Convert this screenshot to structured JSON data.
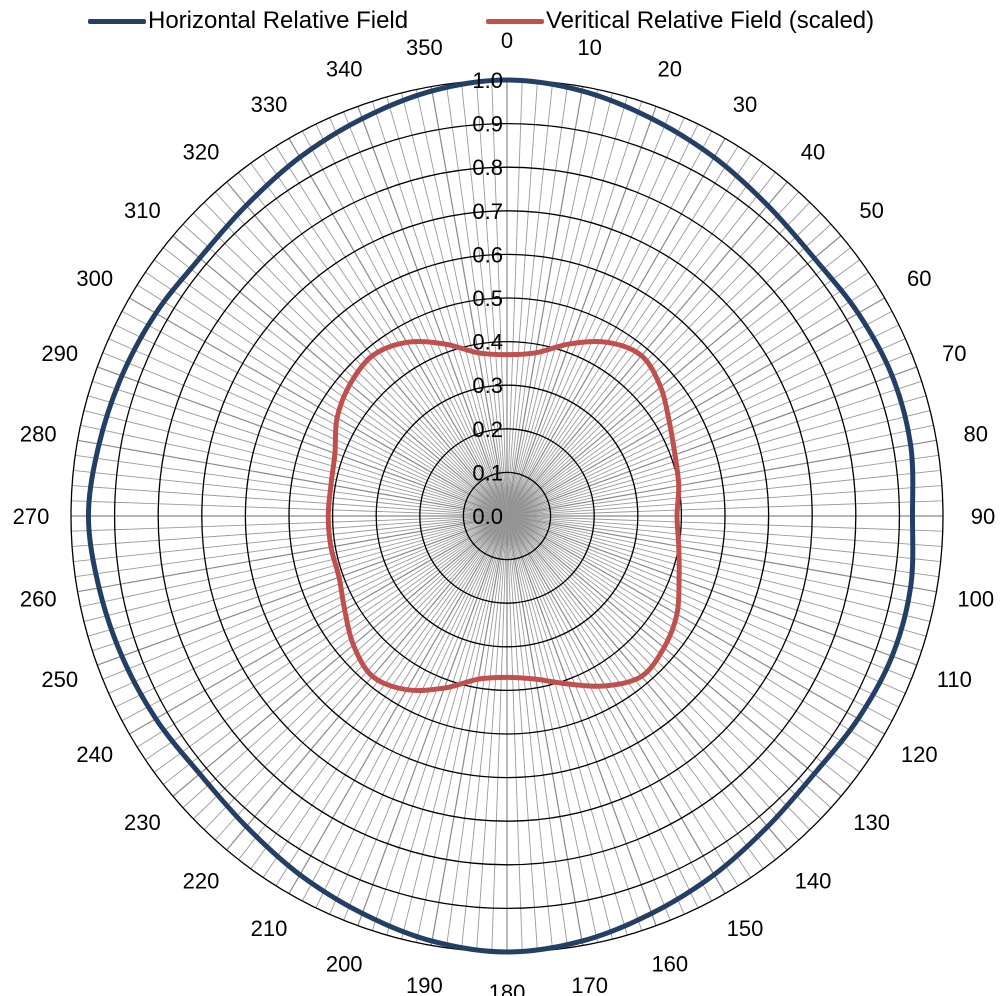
{
  "chart_data": {
    "type": "polar-line",
    "angle_unit": "degrees",
    "angle_ticks": [
      0,
      10,
      20,
      30,
      40,
      50,
      60,
      70,
      80,
      90,
      100,
      110,
      120,
      130,
      140,
      150,
      160,
      170,
      180,
      190,
      200,
      210,
      220,
      230,
      240,
      250,
      260,
      270,
      280,
      290,
      300,
      310,
      320,
      330,
      340,
      350
    ],
    "angle_labels": [
      "0",
      "10",
      "20",
      "30",
      "40",
      "50",
      "60",
      "70",
      "80",
      "90",
      "100",
      "110",
      "120",
      "130",
      "140",
      "150",
      "160",
      "170",
      "180",
      "190",
      "200",
      "210",
      "220",
      "230",
      "240",
      "250",
      "260",
      "270",
      "280",
      "290",
      "300",
      "310",
      "320",
      "330",
      "340",
      "350"
    ],
    "minor_spoke_step_deg": 2,
    "r_range": [
      0,
      1.0
    ],
    "r_ticks": [
      0.0,
      0.1,
      0.2,
      0.3,
      0.4,
      0.5,
      0.6,
      0.7,
      0.8,
      0.9,
      1.0
    ],
    "r_tick_labels": [
      "0.0",
      "0.1",
      "0.2",
      "0.3",
      "0.4",
      "0.5",
      "0.6",
      "0.7",
      "0.8",
      "0.9",
      "1.0"
    ],
    "grid": true,
    "legend_position": "top",
    "series": [
      {
        "name": "Horizontal Relative Field",
        "color": "#243f66",
        "angles": [
          0,
          10,
          20,
          30,
          40,
          50,
          60,
          70,
          80,
          90,
          100,
          110,
          120,
          130,
          140,
          150,
          160,
          170,
          180,
          190,
          200,
          210,
          220,
          230,
          240,
          250,
          260,
          270,
          280,
          290,
          300,
          310,
          320,
          330,
          340,
          350
        ],
        "values": [
          1.0,
          0.99,
          0.97,
          0.95,
          0.93,
          0.92,
          0.93,
          0.94,
          0.94,
          0.93,
          0.94,
          0.94,
          0.93,
          0.92,
          0.93,
          0.95,
          0.97,
          0.99,
          1.0,
          0.99,
          0.97,
          0.95,
          0.93,
          0.92,
          0.93,
          0.94,
          0.95,
          0.96,
          0.95,
          0.94,
          0.93,
          0.92,
          0.93,
          0.95,
          0.97,
          0.99
        ]
      },
      {
        "name": "Veritical Relative Field (scaled)",
        "color": "#c0504d",
        "angles": [
          0,
          10,
          20,
          30,
          40,
          50,
          60,
          70,
          80,
          90,
          100,
          110,
          120,
          130,
          140,
          150,
          160,
          170,
          180,
          190,
          200,
          210,
          220,
          230,
          240,
          250,
          260,
          270,
          280,
          290,
          300,
          310,
          320,
          330,
          340,
          350
        ],
        "values": [
          0.37,
          0.38,
          0.42,
          0.46,
          0.48,
          0.46,
          0.43,
          0.41,
          0.4,
          0.39,
          0.4,
          0.42,
          0.45,
          0.47,
          0.48,
          0.45,
          0.41,
          0.38,
          0.37,
          0.38,
          0.42,
          0.46,
          0.48,
          0.46,
          0.43,
          0.41,
          0.41,
          0.41,
          0.41,
          0.42,
          0.45,
          0.47,
          0.48,
          0.46,
          0.42,
          0.38
        ]
      }
    ]
  }
}
